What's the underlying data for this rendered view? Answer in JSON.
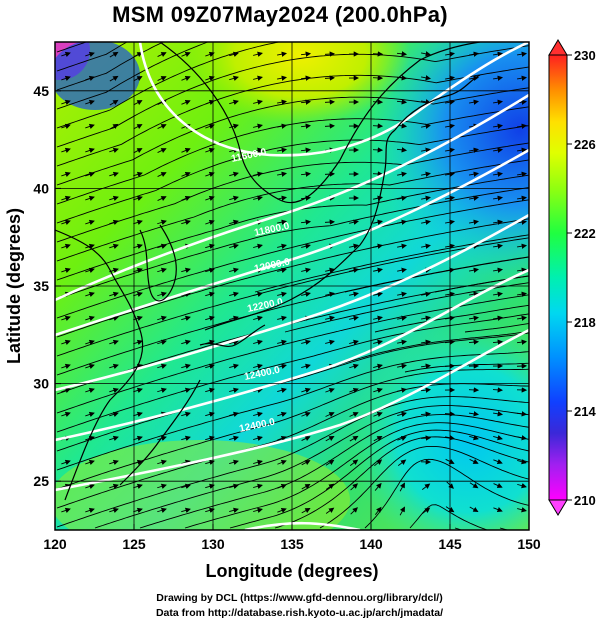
{
  "title": "MSM 09Z07May2024 (200.0hPa)",
  "xlabel": "Longitude (degrees)",
  "ylabel": "Latitude  (degrees)",
  "x_ticks": [
    "120",
    "125",
    "130",
    "135",
    "140",
    "145",
    "150"
  ],
  "y_ticks": [
    "25",
    "30",
    "35",
    "40",
    "45"
  ],
  "colorbar": {
    "ticks": [
      "210",
      "214",
      "218",
      "222",
      "226",
      "230"
    ],
    "min": 210,
    "max": 230,
    "colors": {
      "210": "#ff00ff",
      "211": "#a020f0",
      "212": "#3b28d8",
      "214": "#0028ff",
      "216": "#0080ff",
      "218": "#00e0e0",
      "220": "#00ff90",
      "222": "#28ff28",
      "224": "#c0ff00",
      "226": "#ffff00",
      "228": "#ff9000",
      "230": "#ff2020"
    }
  },
  "contour_labels": [
    "11600.0",
    "11800.0",
    "12000.0",
    "12200.0",
    "12400.0"
  ],
  "credits": [
    "Drawing by DCL (https://www.gfd-dennou.org/library/dcl/)",
    "Data from http://database.rish.kyoto-u.ac.jp/arch/jmadata/"
  ],
  "chart_data": {
    "type": "heatmap",
    "title": "MSM 09Z07May2024 (200.0hPa)",
    "xlabel": "Longitude (degrees)",
    "ylabel": "Latitude  (degrees)",
    "xlim": [
      120,
      150
    ],
    "ylim": [
      22.5,
      47.5
    ],
    "colorbar_range": [
      210,
      230
    ],
    "overlays": [
      "wind streamlines with arrows",
      "geopotential height contours (white)",
      "coastlines",
      "lat/lon grid"
    ]
  }
}
